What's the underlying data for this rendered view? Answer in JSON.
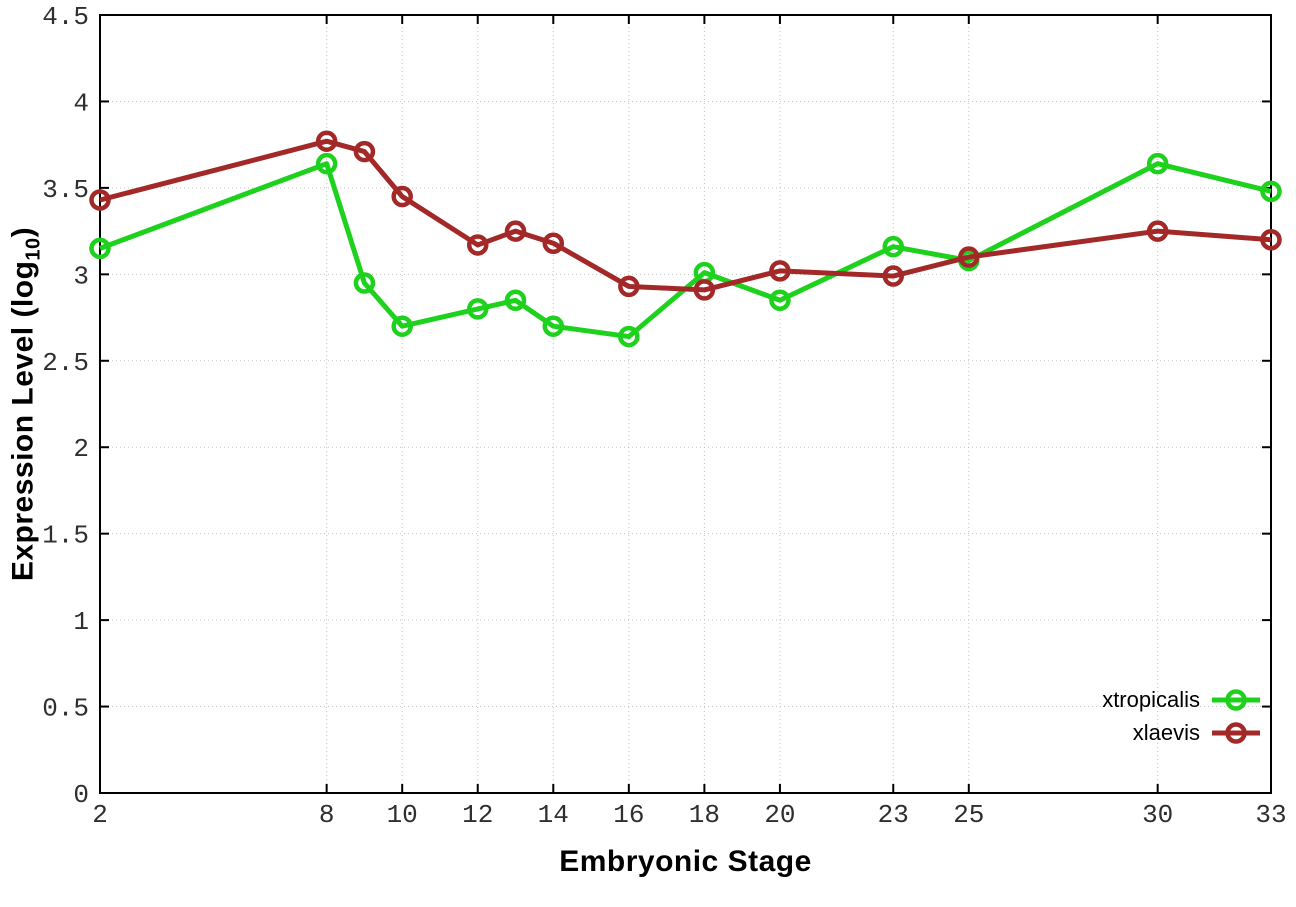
{
  "chart_data": {
    "type": "line",
    "x": [
      2,
      8,
      9,
      10,
      12,
      13,
      14,
      16,
      18,
      20,
      23,
      25,
      30,
      33
    ],
    "series": [
      {
        "name": "xtropicalis",
        "color": "#1dd11d",
        "values": [
          3.15,
          3.64,
          2.95,
          2.7,
          2.8,
          2.85,
          2.7,
          2.64,
          3.01,
          2.85,
          3.16,
          3.08,
          3.64,
          3.48
        ]
      },
      {
        "name": "xlaevis",
        "color": "#a32929",
        "values": [
          3.43,
          3.77,
          3.71,
          3.45,
          3.17,
          3.25,
          3.18,
          2.93,
          2.91,
          3.02,
          2.99,
          3.1,
          3.25,
          3.2
        ]
      }
    ],
    "xlabel": "Embryonic Stage",
    "ylabel": {
      "main": "Expression Level (log",
      "sub": "10",
      "end": ")"
    },
    "xlim": [
      2,
      33
    ],
    "ylim": [
      0,
      4.5
    ],
    "x_ticks": [
      "2",
      "8",
      "10",
      "12",
      "14",
      "16",
      "18",
      "20",
      "23",
      "25",
      "30",
      "33"
    ],
    "y_ticks": [
      "0",
      "0.5",
      "1",
      "1.5",
      "2",
      "2.5",
      "3",
      "3.5",
      "4",
      "4.5"
    ],
    "grid": true,
    "legend_position": "bottom-right",
    "styles": {
      "background": "#ffffff",
      "border_color": "#000000",
      "grid_color": "#c4c4c4",
      "tick_color": "#000000",
      "tick_label_color": "#2f2f2f",
      "line_width": 5,
      "marker_radius": 8.5,
      "marker_stroke": 4.5
    }
  }
}
